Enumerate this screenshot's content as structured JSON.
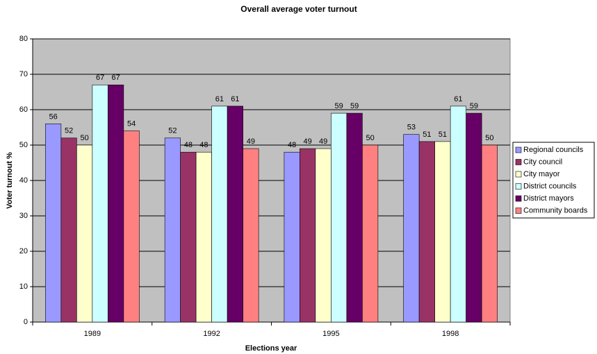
{
  "chart_data": {
    "type": "bar",
    "title": "Overall average voter turnout",
    "x_label": "Elections year",
    "y_label": "Voter turnout %",
    "categories": [
      "1989",
      "1992",
      "1995",
      "1998"
    ],
    "series": [
      {
        "name": "Regional councils",
        "color": "#9999ff",
        "values": [
          56,
          52,
          48,
          53
        ]
      },
      {
        "name": "City council",
        "color": "#993366",
        "values": [
          52,
          48,
          49,
          51
        ]
      },
      {
        "name": "City mayor",
        "color": "#ffffcc",
        "values": [
          50,
          48,
          49,
          51
        ]
      },
      {
        "name": "District councils",
        "color": "#ccffff",
        "values": [
          67,
          61,
          59,
          61
        ]
      },
      {
        "name": "District mayors",
        "color": "#660066",
        "values": [
          67,
          61,
          59,
          59
        ]
      },
      {
        "name": "Community boards",
        "color": "#ff8080",
        "values": [
          54,
          49,
          50,
          50
        ]
      }
    ],
    "ylim": [
      0,
      80
    ],
    "yticks": [
      0,
      10,
      20,
      30,
      40,
      50,
      60,
      70,
      80
    ],
    "grid": true,
    "plot_background": "#c0c0c0",
    "legend": "right"
  }
}
